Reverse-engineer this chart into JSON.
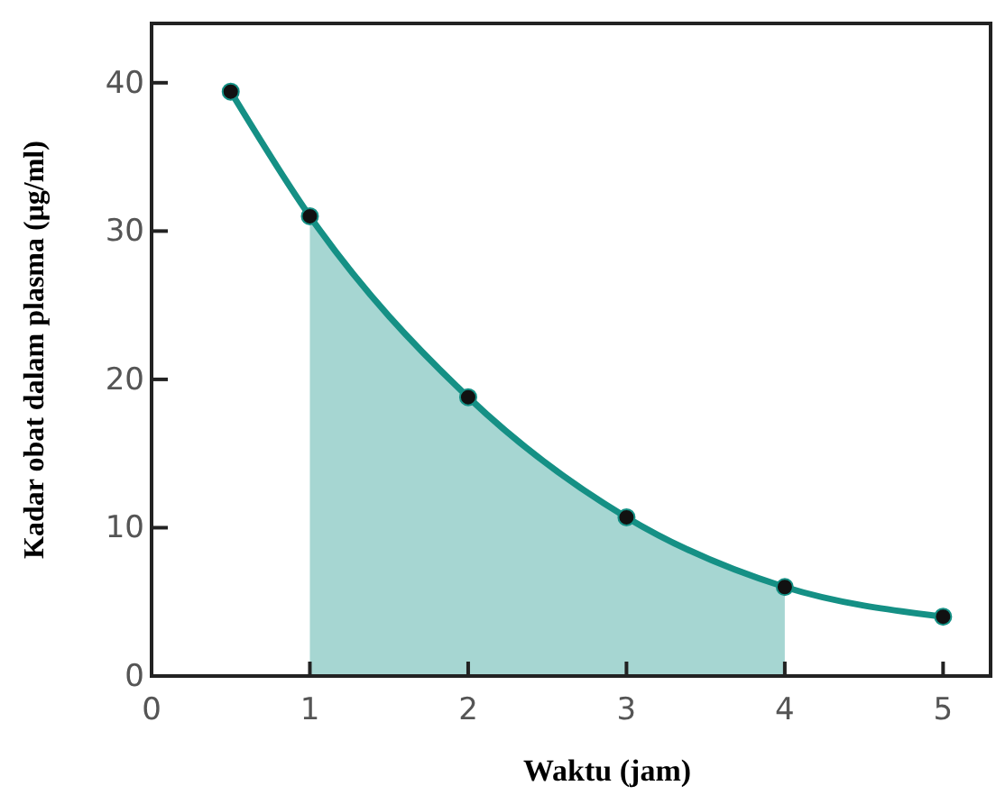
{
  "chart_data": {
    "type": "line",
    "xlabel": "Waktu (jam)",
    "ylabel": "Kadar obat dalam plasma (μg/ml)",
    "xlim": [
      0,
      5.3
    ],
    "xticks": [
      0,
      1,
      2,
      3,
      4,
      5
    ],
    "ylim": [
      0,
      44
    ],
    "yticks": [
      0,
      10,
      20,
      30,
      40
    ],
    "grid": false,
    "series": [
      {
        "type": "area",
        "color": "#a6d6d2",
        "x": [
          1,
          2,
          3,
          4
        ],
        "values": [
          31.0,
          18.8,
          10.7,
          6.0
        ]
      },
      {
        "color": "#159085",
        "marker": "circle",
        "x": [
          0.5,
          1,
          2,
          3,
          4,
          5
        ],
        "values": [
          39.4,
          31.0,
          18.8,
          10.7,
          6.0,
          4.0
        ]
      }
    ]
  }
}
